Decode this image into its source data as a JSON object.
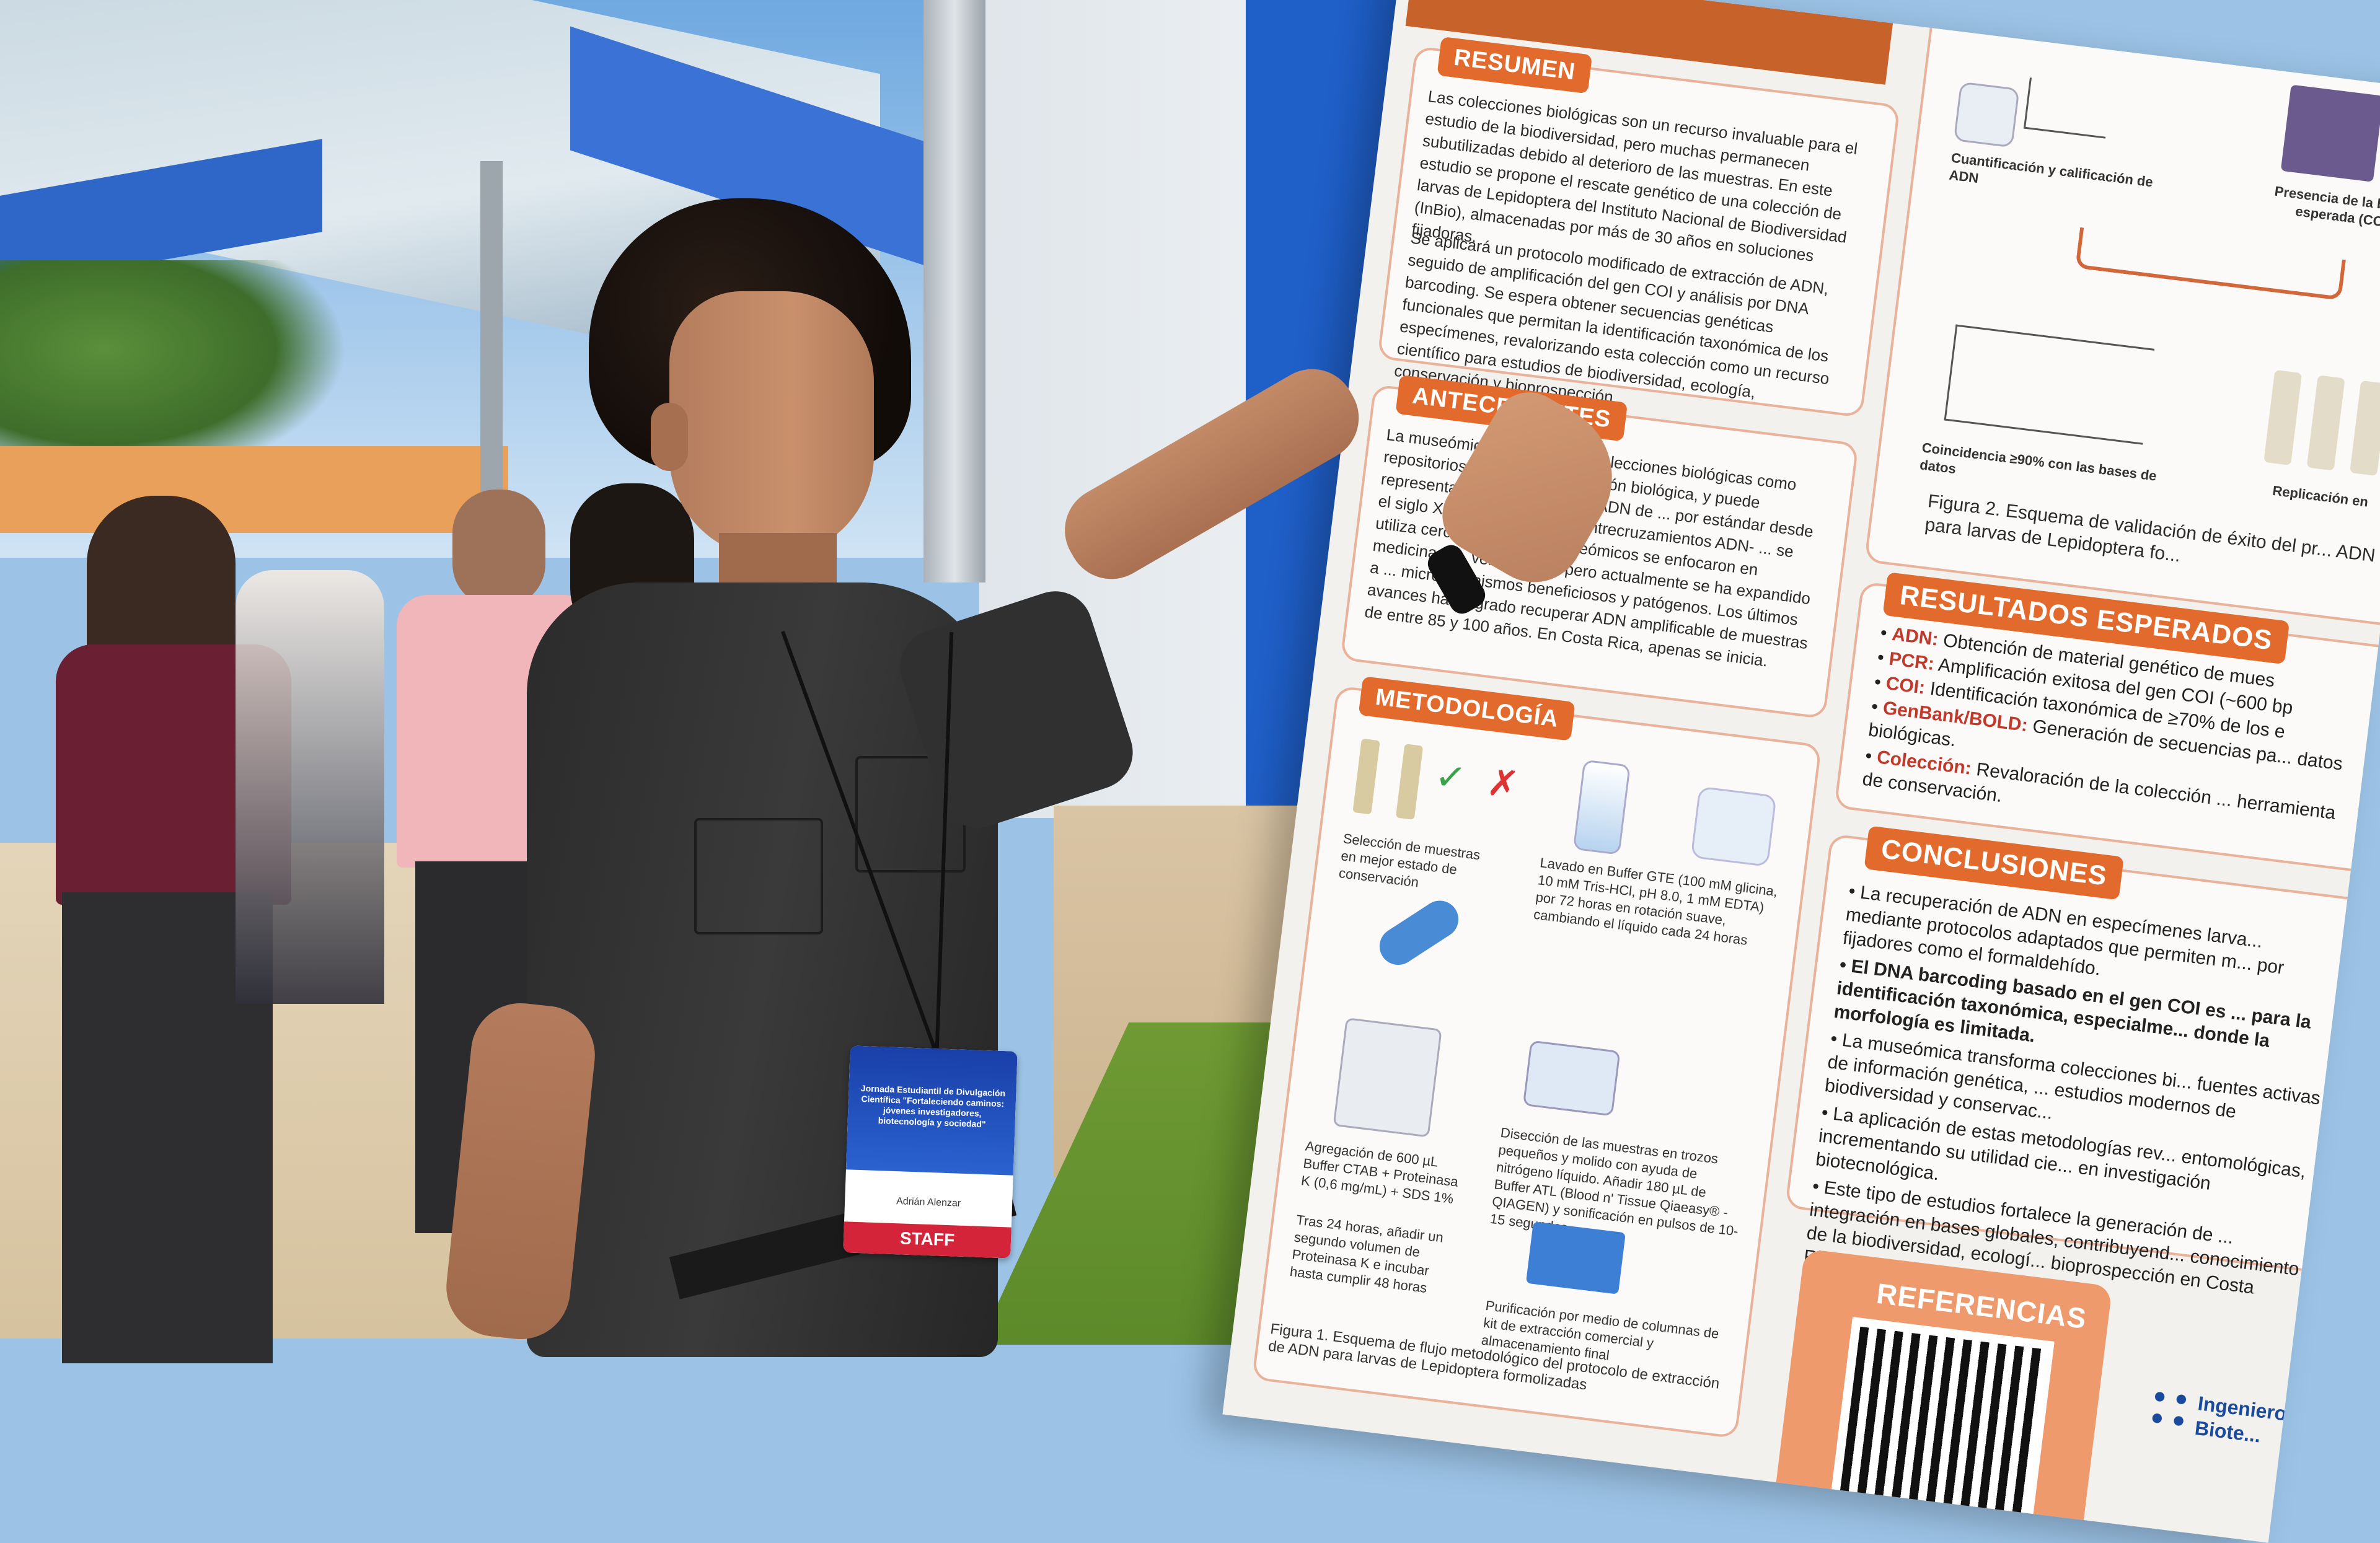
{
  "poster": {
    "resumen": {
      "heading": "RESUMEN",
      "p1": "Las colecciones biológicas son un recurso invaluable para el estudio de la biodiversidad, pero muchas permanecen subutilizadas debido al deterioro de las muestras. En este estudio se propone el rescate genético de una colección de larvas de Lepidoptera del Instituto Nacional de Biodiversidad (InBio), almacenadas por más de 30 años en soluciones fijadoras.",
      "p2": "Se aplicará un protocolo modificado de extracción de ADN, seguido de amplificación del gen COI y análisis por DNA barcoding. Se espera obtener secuencias genéticas funcionales que permitan la identificación taxonómica de los especímenes, revalorizando esta colección como un recurso científico para estudios de biodiversidad, ecología, conservación y bioprospección."
    },
    "antecedentes": {
      "heading": "ANTECEDENTES",
      "text": "La museómica considera las colecciones biológicas como repositorios únicos de información biológica, y puede representar la única fuente de ADN de ... por estándar desde el siglo XIX, sin ... mediante entrecruzamientos ADN- ... se utiliza cerca del 12%. ... museómicos se enfocaron en medicina y ... vertebrados, pero actualmente se ha expandido a ... microorganismos beneficiosos y patógenos. Los últimos avances han logrado recuperar ADN amplificable de muestras de entre 85 y 100 años. En Costa Rica, apenas se inicia."
    },
    "metodologia": {
      "heading": "METODOLOGÍA",
      "step1": "Selección de muestras en mejor estado de conservación",
      "step2": "Lavado en Buffer GTE (100 mM glicina, 10 mM Tris-HCl, pH 8.0, 1 mM EDTA) por 72 horas en rotación suave, cambiando el líquido cada 24 horas",
      "step3": "Disección de las muestras en trozos pequeños y molido con ayuda de nitrógeno líquido. Añadir 180 µL de Buffer ATL (Blood n' Tissue Qiaeasy® - QIAGEN) y sonificación en pulsos de 10-15 segundos.",
      "step4": "Agregación de 600 µL Buffer CTAB + Proteinasa K (0,6 mg/mL) + SDS 1%",
      "step5": "Tras 24 horas, añadir un segundo volumen de Proteinasa K e incubar hasta cumplir 48 horas",
      "step6": "Purificación por medio de columnas de kit de extracción comercial y almacenamiento final",
      "figure1": "Figura 1. Esquema de flujo metodológico del protocolo de extracción de ADN para larvas de Lepidoptera formolizadas"
    },
    "validation": {
      "label_quant": "Cuantificación y calificación de ADN",
      "label_band": "Presencia de la banda esperada (COI)",
      "label_match": "Coincidencia ≥90% con las bases de datos",
      "label_repl": "Replicación en",
      "figure2": "Figura 2. Esquema de validación de éxito del pr... ADN para larvas de Lepidoptera fo..."
    },
    "resultados": {
      "heading": "RESULTADOS ESPERADOS",
      "items": [
        {
          "key": "ADN:",
          "text": "Obtención de material genético de mues"
        },
        {
          "key": "PCR:",
          "text": "Amplificación exitosa del gen COI (~600 bp"
        },
        {
          "key": "COI:",
          "text": "Identificación taxonómica de ≥70% de los e"
        },
        {
          "key": "GenBank/BOLD:",
          "text": "Generación de secuencias pa... datos biológicas."
        },
        {
          "key": "Colección:",
          "text": "Revaloración de la colección ... herramienta de conservación."
        }
      ]
    },
    "conclusiones": {
      "heading": "CONCLUSIONES",
      "items": [
        "La recuperación de ADN en especímenes larva... mediante protocolos adaptados que permiten m... por fijadores como el formaldehído.",
        "El DNA barcoding basado en el gen COI es ... para la identificación taxonómica, especialme... donde la morfología es limitada.",
        "La museómica transforma colecciones bi... fuentes activas de información genética, ... estudios modernos de biodiversidad y conservac...",
        "La aplicación de estas metodologías rev... entomológicas, incrementando su utilidad cie... en investigación biotecnológica.",
        "Este tipo de estudios fortalece la generación de ... integración en bases globales, contribuyend... conocimiento de la biodiversidad, ecologí... bioprospección en Costa Rica."
      ]
    },
    "referencias": {
      "heading": "REFERENCIAS"
    },
    "logo_text": "Ingeniero ... Biote..."
  },
  "badge": {
    "event_line": "Jornada Estudiantil de Divulgación Científica \"Fortaleciendo caminos: jóvenes investigadores, biotecnología y sociedad\"",
    "name": "Adrián Alenzar",
    "role": "STAFF"
  },
  "colors": {
    "poster_accent": "#e26a2c",
    "badge_blue": "#1a3fa8",
    "badge_red": "#d3243a"
  }
}
